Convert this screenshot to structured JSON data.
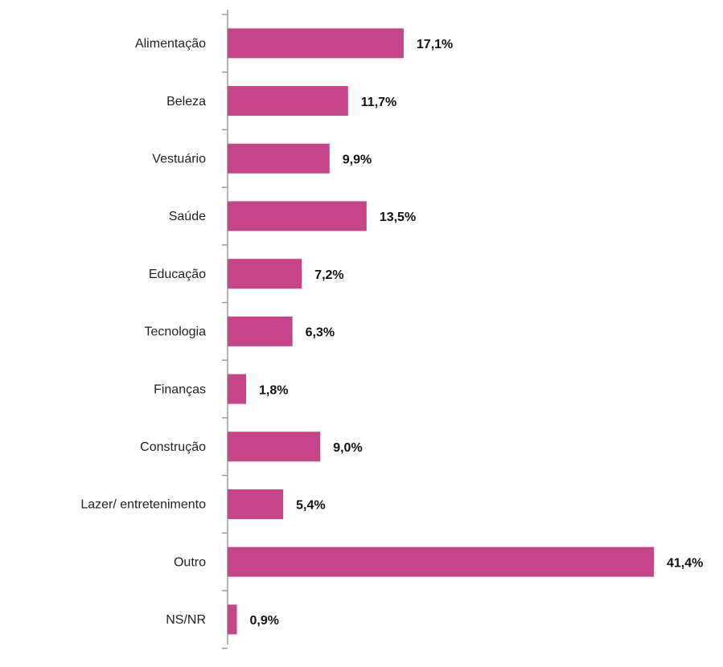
{
  "chart_data": {
    "type": "bar",
    "orientation": "horizontal",
    "categories": [
      "Alimentação",
      "Beleza",
      "Vestuário",
      "Saúde",
      "Educação",
      "Tecnologia",
      "Finanças",
      "Construção",
      "Lazer/ entretenimento",
      "Outro",
      "NS/NR"
    ],
    "values": [
      17.1,
      11.7,
      9.9,
      13.5,
      7.2,
      6.3,
      1.8,
      9.0,
      5.4,
      41.4,
      0.9
    ],
    "value_labels": [
      "17,1%",
      "11,7%",
      "9,9%",
      "13,5%",
      "7,2%",
      "6,3%",
      "1,8%",
      "9,0%",
      "5,4%",
      "41,4%",
      "0,9%"
    ],
    "color": "#c8448a"
  }
}
